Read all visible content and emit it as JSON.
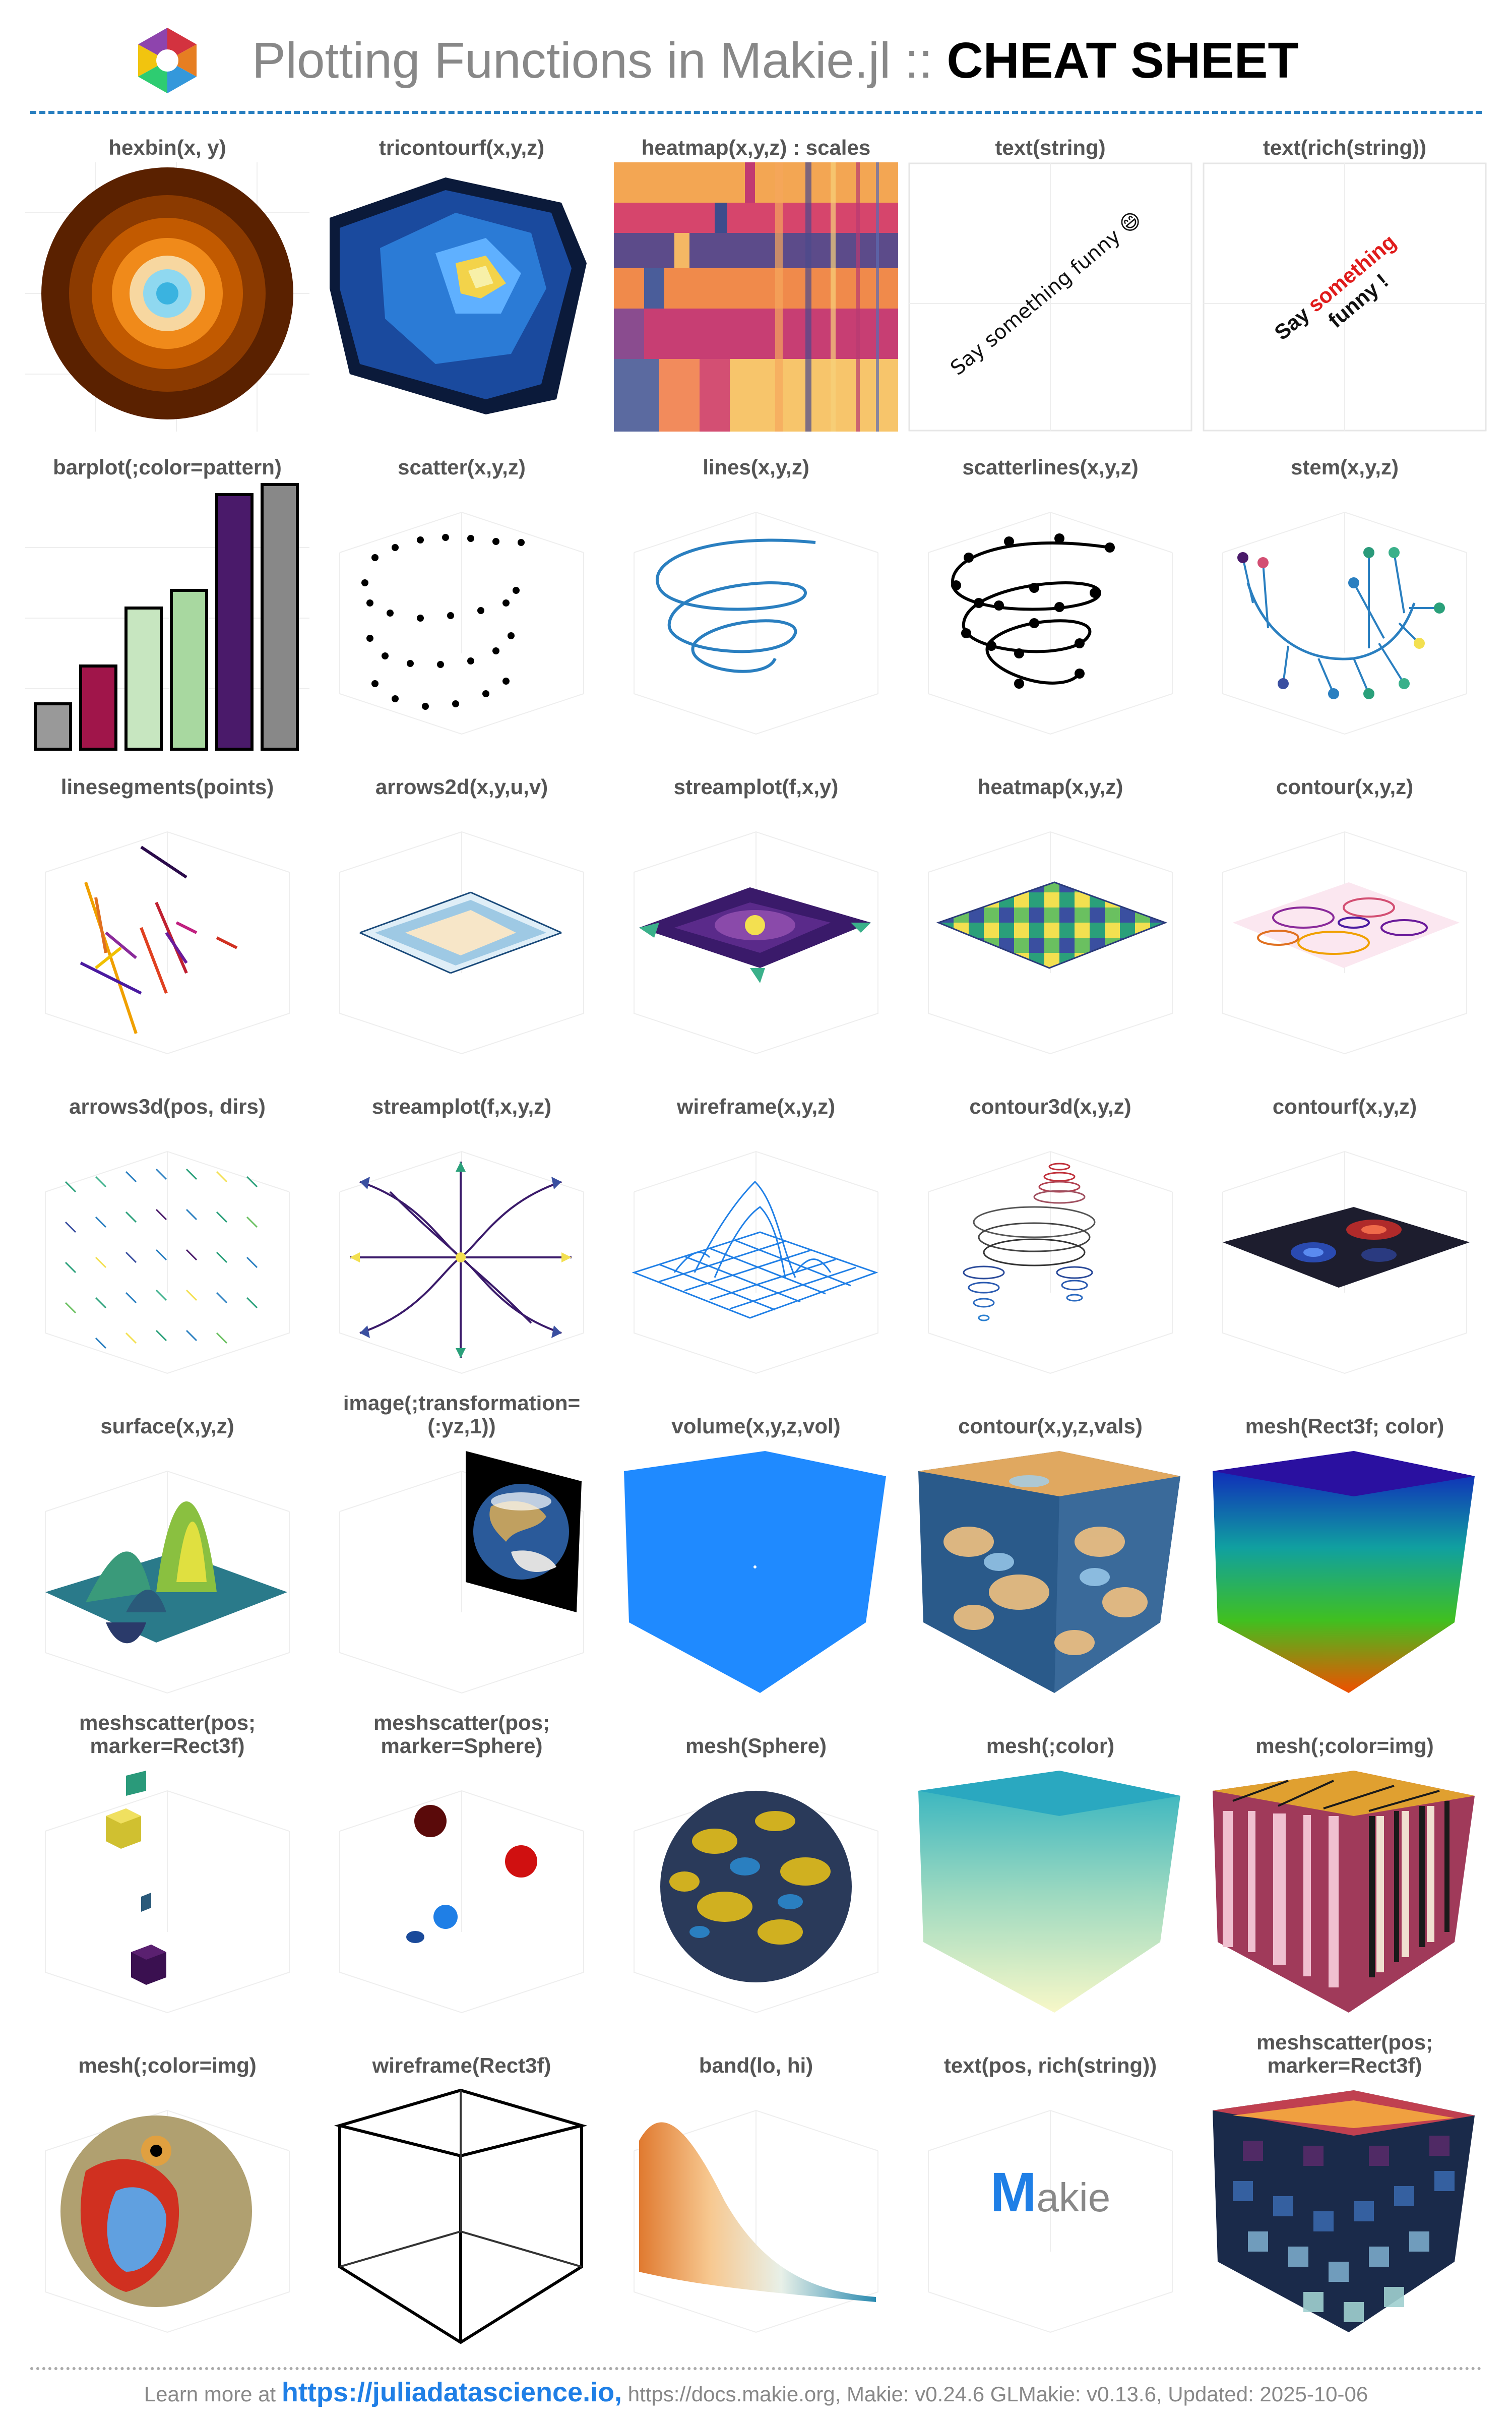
{
  "header": {
    "title_main": "Plotting Functions in Makie.jl",
    "title_sep": " :: ",
    "title_cheat": "CHEAT SHEET",
    "logo_icon": "makie-logo-icon"
  },
  "colors": {
    "accent": "#2a7fc0",
    "link": "#1f7fe6",
    "label": "#555555",
    "muted": "#888888"
  },
  "cells": [
    {
      "label": "hexbin(x, y)"
    },
    {
      "label": "tricontourf(x,y,z)"
    },
    {
      "label": "heatmap(x,y,z) : scales"
    },
    {
      "label": "text(string)",
      "text": "Say something funny 😄"
    },
    {
      "label": "text(rich(string))",
      "text_a": "Say ",
      "text_b": "something",
      "text_c": "funny !"
    },
    {
      "label": "barplot(;color=pattern)"
    },
    {
      "label": "scatter(x,y,z)"
    },
    {
      "label": "lines(x,y,z)"
    },
    {
      "label": "scatterlines(x,y,z)"
    },
    {
      "label": "stem(x,y,z)"
    },
    {
      "label": "linesegments(points)"
    },
    {
      "label": "arrows2d(x,y,u,v)"
    },
    {
      "label": "streamplot(f,x,y)"
    },
    {
      "label": "heatmap(x,y,z)"
    },
    {
      "label": "contour(x,y,z)"
    },
    {
      "label": "arrows3d(pos, dirs)"
    },
    {
      "label": "streamplot(f,x,y,z)"
    },
    {
      "label": "wireframe(x,y,z)"
    },
    {
      "label": "contour3d(x,y,z)"
    },
    {
      "label": "contourf(x,y,z)"
    },
    {
      "label": "surface(x,y,z)"
    },
    {
      "label": "image(;transformation=(:yz,1))"
    },
    {
      "label": "volume(x,y,z,vol)"
    },
    {
      "label": "contour(x,y,z,vals)"
    },
    {
      "label": "mesh(Rect3f; color)"
    },
    {
      "label": "meshscatter(pos;\nmarker=Rect3f)"
    },
    {
      "label": "meshscatter(pos;\nmarker=Sphere)"
    },
    {
      "label": "mesh(Sphere)"
    },
    {
      "label": "mesh(;color)"
    },
    {
      "label": "mesh(;color=img)"
    },
    {
      "label": "mesh(;color=img)"
    },
    {
      "label": "wireframe(Rect3f)"
    },
    {
      "label": "band(lo, hi)"
    },
    {
      "label": "text(pos, rich(string))",
      "text_m": "M",
      "text_akie": "akie"
    },
    {
      "label": "meshscatter(pos;\nmarker=Rect3f)"
    }
  ],
  "footer": {
    "prefix": "Learn more at ",
    "link": "https://juliadatascience.io,",
    "rest": " https://docs.makie.org, Makie: v0.24.6 GLMakie: v0.13.6, Updated: 2025-10-06"
  }
}
